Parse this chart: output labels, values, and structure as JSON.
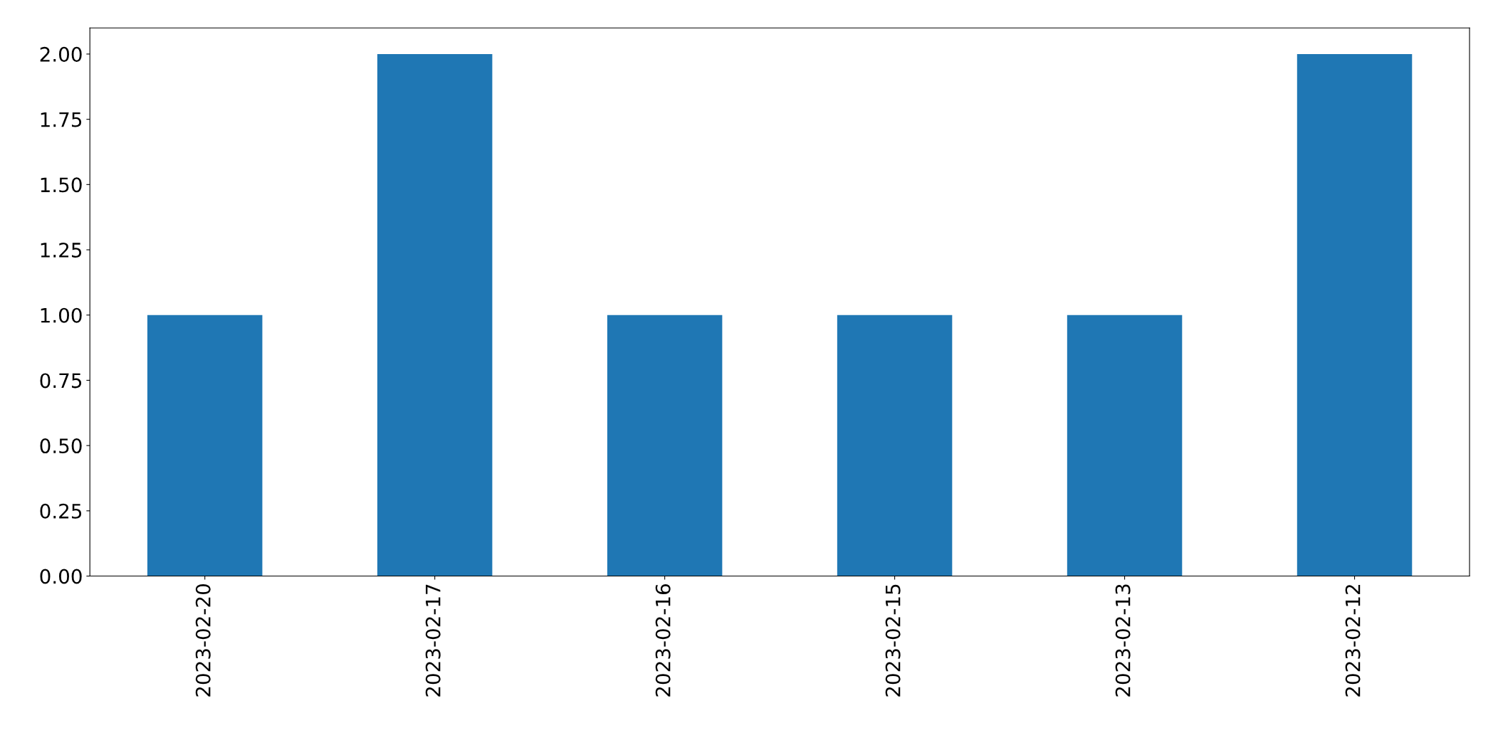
{
  "chart_data": {
    "type": "bar",
    "categories": [
      "2023-02-20",
      "2023-02-17",
      "2023-02-16",
      "2023-02-15",
      "2023-02-13",
      "2023-02-12"
    ],
    "values": [
      1,
      2,
      1,
      1,
      1,
      2
    ],
    "color": "#1f77b4",
    "ylim": [
      0,
      2.1
    ],
    "yticks": [
      {
        "value": 0,
        "label": "0.00"
      },
      {
        "value": 0.25,
        "label": "0.25"
      },
      {
        "value": 0.5,
        "label": "0.50"
      },
      {
        "value": 0.75,
        "label": "0.75"
      },
      {
        "value": 1,
        "label": "1.00"
      },
      {
        "value": 1.25,
        "label": "1.25"
      },
      {
        "value": 1.5,
        "label": "1.50"
      },
      {
        "value": 1.75,
        "label": "1.75"
      },
      {
        "value": 2,
        "label": "2.00"
      }
    ],
    "grid": false,
    "legend": false
  }
}
